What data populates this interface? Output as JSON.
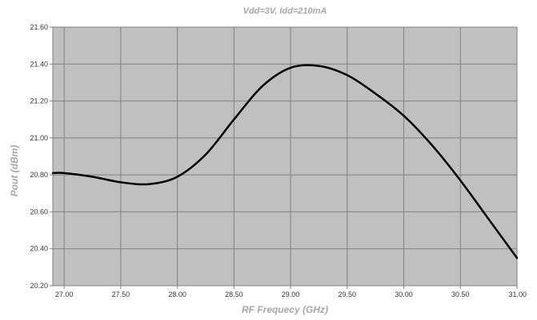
{
  "chart_data": {
    "type": "line",
    "title": "Vdd=3V, Idd=210mA",
    "xlabel": "RF Frequecy (GHz)",
    "ylabel": "Pout (dBm)",
    "xlim": [
      26.9,
      31.0
    ],
    "ylim": [
      20.2,
      21.6
    ],
    "xticks": [
      27.0,
      27.5,
      28.0,
      28.5,
      29.0,
      29.5,
      30.0,
      30.5,
      31.0
    ],
    "yticks": [
      20.2,
      20.4,
      20.6,
      20.8,
      21.0,
      21.2,
      21.4,
      21.6
    ],
    "xtick_labels": [
      "27.00",
      "27.50",
      "28.00",
      "28.50",
      "29.00",
      "29.50",
      "30.00",
      "30.50",
      "31.00"
    ],
    "ytick_labels": [
      "20.20",
      "20.40",
      "20.60",
      "20.80",
      "21.00",
      "21.20",
      "21.40",
      "21.60"
    ],
    "grid": true,
    "plot_background": "#c0c0c0",
    "grid_color": "#808080",
    "line_color": "#000000",
    "series": [
      {
        "x": [
          26.9,
          27.0,
          27.25,
          27.5,
          27.75,
          28.0,
          28.25,
          28.5,
          28.75,
          29.0,
          29.25,
          29.5,
          29.75,
          30.0,
          30.25,
          30.5,
          30.75,
          31.0
        ],
        "values": [
          20.81,
          20.81,
          20.79,
          20.76,
          20.75,
          20.79,
          20.91,
          21.1,
          21.28,
          21.38,
          21.39,
          21.34,
          21.24,
          21.12,
          20.96,
          20.77,
          20.56,
          20.35
        ]
      }
    ]
  }
}
